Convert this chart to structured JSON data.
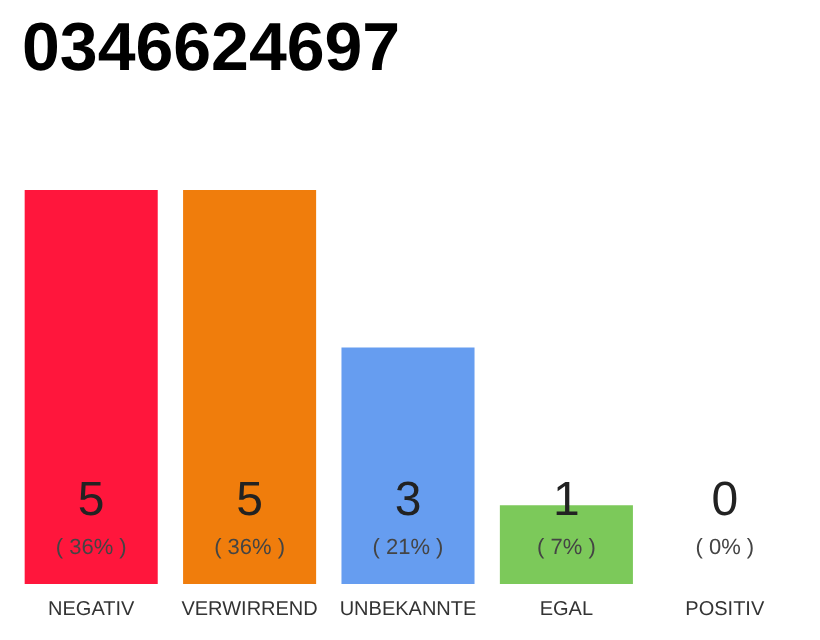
{
  "chart_data": {
    "type": "bar",
    "title": "0346624697",
    "categories": [
      "NEGATIV",
      "VERWIRREND",
      "UNBEKANNTE",
      "EGAL",
      "POSITIV"
    ],
    "values": [
      5,
      5,
      3,
      1,
      0
    ],
    "colors": [
      "#ff163c",
      "#f07d0c",
      "#669df0",
      "#7cc95a",
      "#2aa84a"
    ],
    "value_labels": [
      "5\n( 36% )",
      "5\n( 36% )",
      "3\n( 21% )",
      "1\n( 7% )",
      "0\n( 0% )"
    ],
    "grid": false
  }
}
